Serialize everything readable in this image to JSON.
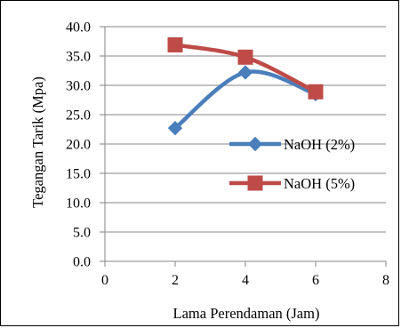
{
  "chart_data": {
    "type": "line",
    "title": "",
    "xlabel": "Lama Perendaman (Jam)",
    "ylabel": "Tegangan Tarik (Mpa)",
    "xlim": [
      0,
      8
    ],
    "ylim": [
      0,
      40
    ],
    "x_ticks": [
      "0",
      "2",
      "4",
      "6",
      "8"
    ],
    "y_ticks": [
      "0.0",
      "5.0",
      "10.0",
      "15.0",
      "20.0",
      "25.0",
      "30.0",
      "35.0",
      "40.0"
    ],
    "grid": "horizontal",
    "legend_position": "right",
    "smoothed": true,
    "series": [
      {
        "name": "NaOH (2%)",
        "color": "#4a7ebb",
        "marker": "diamond",
        "x": [
          2,
          4,
          6
        ],
        "y": [
          22.7,
          32.2,
          28.5
        ]
      },
      {
        "name": "NaOH (5%)",
        "color": "#be4b48",
        "marker": "square",
        "x": [
          2,
          4,
          6
        ],
        "y": [
          36.9,
          34.8,
          28.9
        ]
      }
    ]
  }
}
